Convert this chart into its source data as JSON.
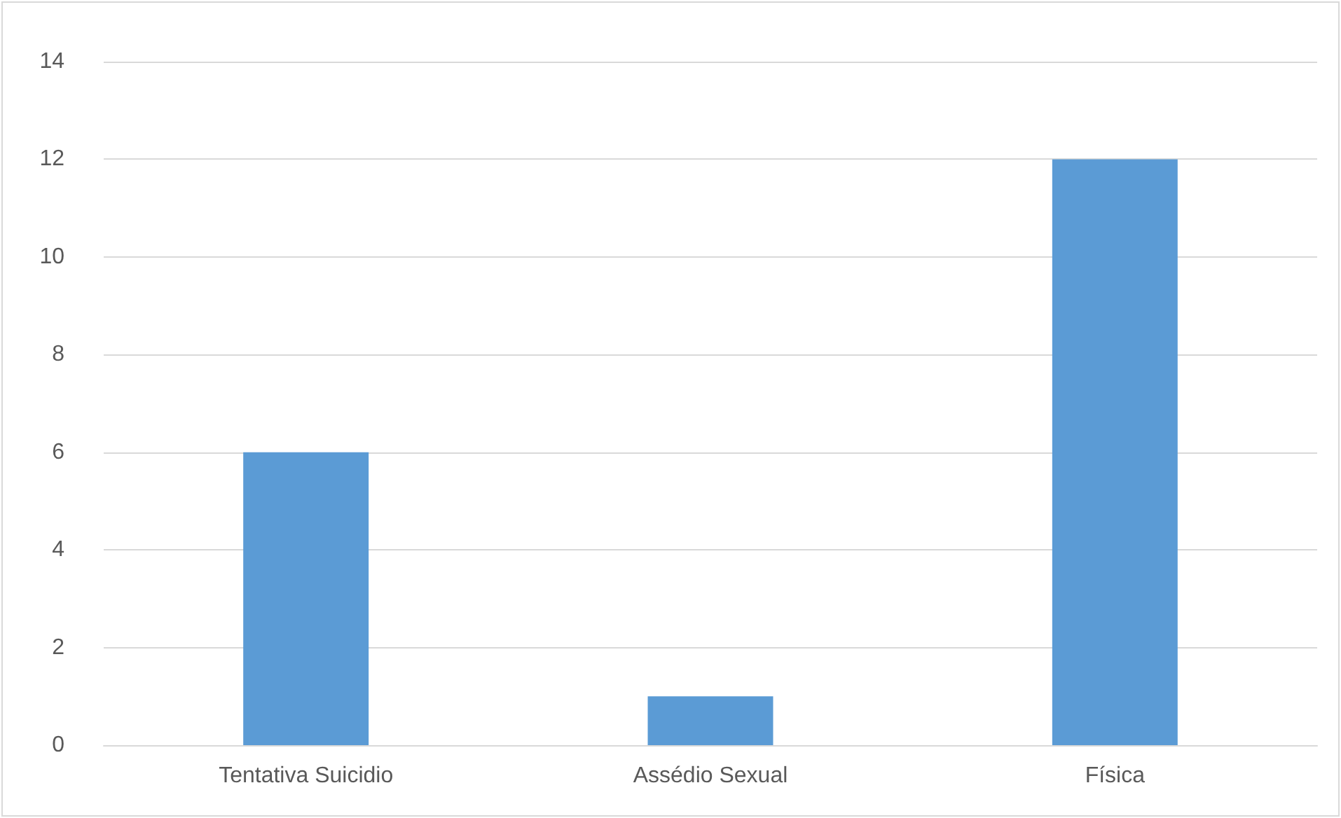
{
  "chart_data": {
    "type": "bar",
    "categories": [
      "Tentativa Suicidio",
      "Assédio Sexual",
      "Física"
    ],
    "values": [
      6,
      1,
      12
    ],
    "color": "#5b9bd5",
    "ylim": [
      0,
      14
    ],
    "yticks": [
      0,
      2,
      4,
      6,
      8,
      10,
      12,
      14
    ],
    "grid": "y"
  }
}
